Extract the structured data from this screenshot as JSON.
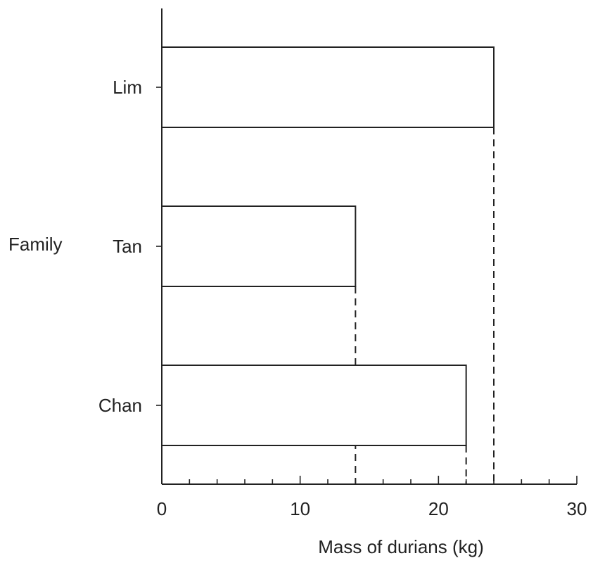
{
  "chart_data": {
    "type": "bar",
    "orientation": "horizontal",
    "categories": [
      "Lim",
      "Tan",
      "Chan"
    ],
    "values": [
      24,
      14,
      22
    ],
    "xlabel": "Mass of durians (kg)",
    "ylabel": "Family",
    "xlim": [
      0,
      30
    ],
    "x_ticks": [
      "0",
      "10",
      "20",
      "30"
    ],
    "grid": false,
    "dashed_guides": true
  }
}
